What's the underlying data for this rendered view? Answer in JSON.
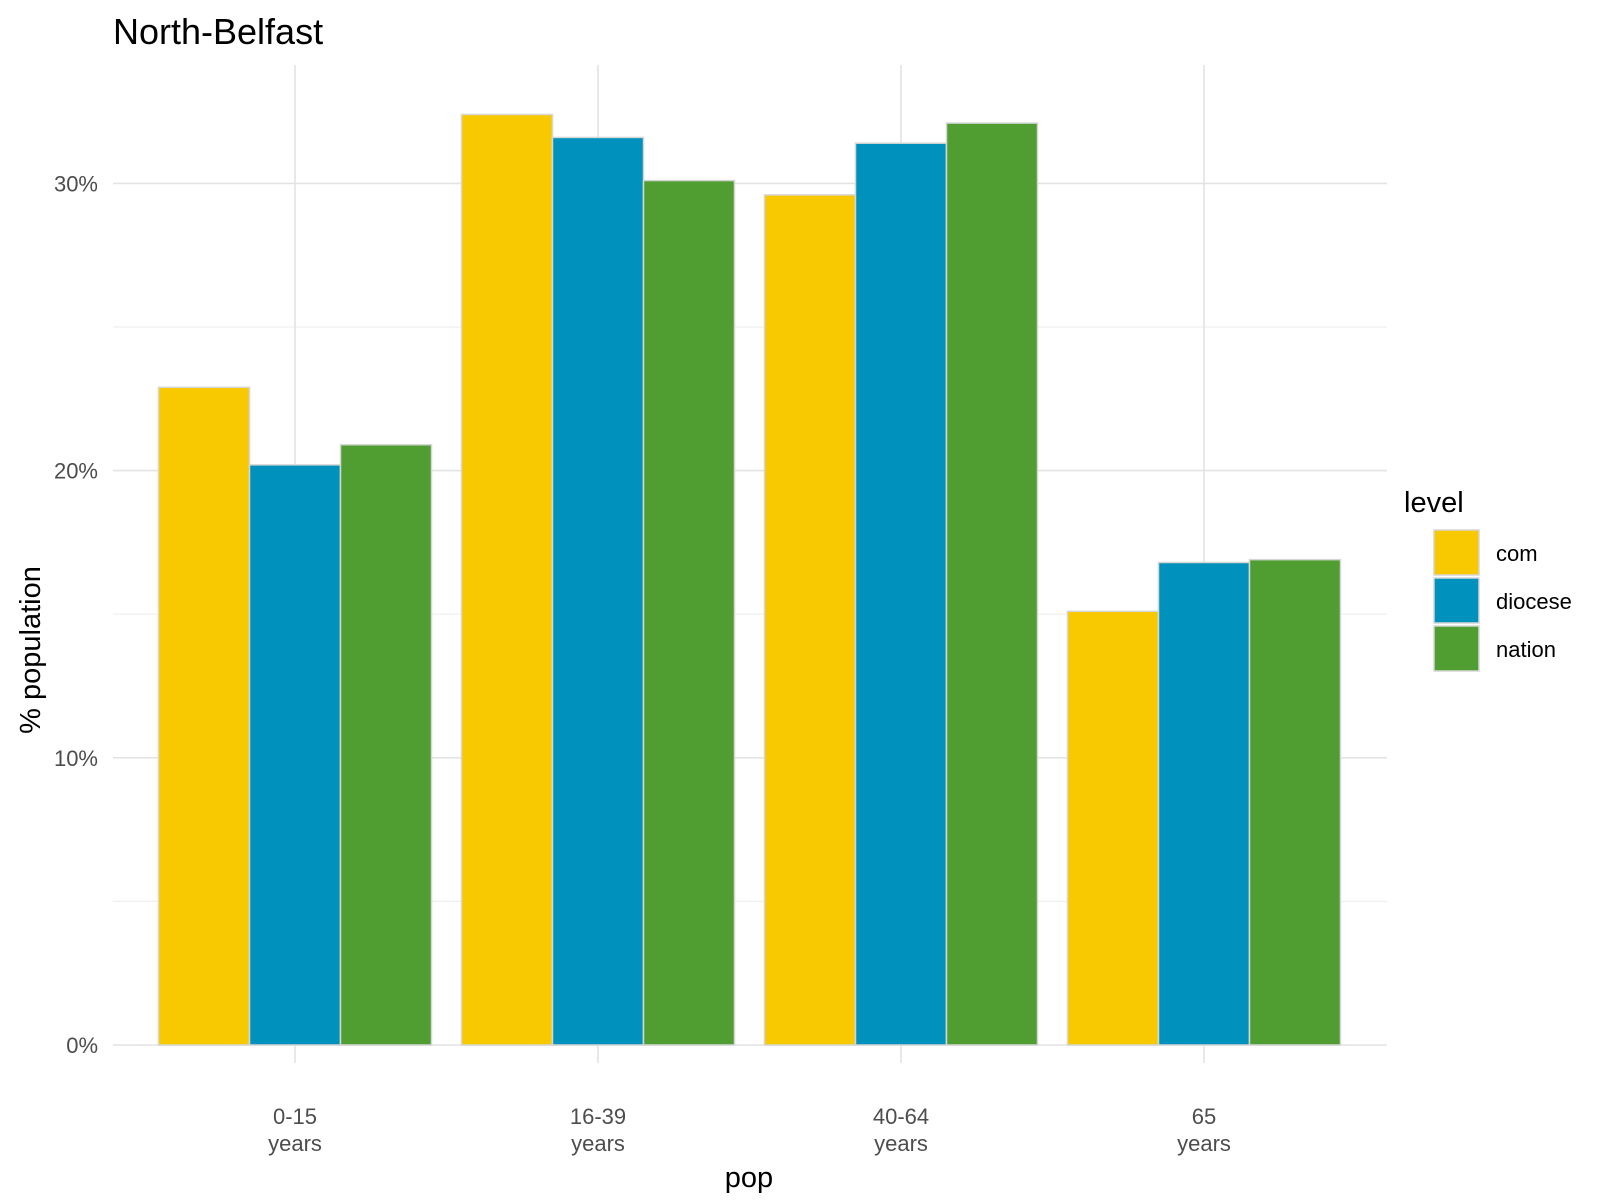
{
  "chart_data": {
    "type": "bar",
    "title": "North-Belfast",
    "xlabel": "pop",
    "ylabel": "% population",
    "categories": [
      [
        "0-15",
        "years"
      ],
      [
        "16-39",
        "years"
      ],
      [
        "40-64",
        "years"
      ],
      [
        "65",
        "years"
      ]
    ],
    "series": [
      {
        "name": "com",
        "values": [
          22.9,
          32.4,
          29.6,
          15.1
        ],
        "color": "#F8C900"
      },
      {
        "name": "diocese",
        "values": [
          20.2,
          31.6,
          31.4,
          16.8
        ],
        "color": "#0092BC"
      },
      {
        "name": "nation",
        "values": [
          20.9,
          30.1,
          32.1,
          16.9
        ],
        "color": "#509E32"
      }
    ],
    "ylim": [
      0,
      33
    ],
    "yticks": [
      0,
      10,
      20,
      30
    ],
    "ytick_labels": [
      "0%",
      "10%",
      "20%",
      "30%"
    ],
    "grid": true,
    "legend": {
      "title": "level",
      "position": "right"
    }
  }
}
